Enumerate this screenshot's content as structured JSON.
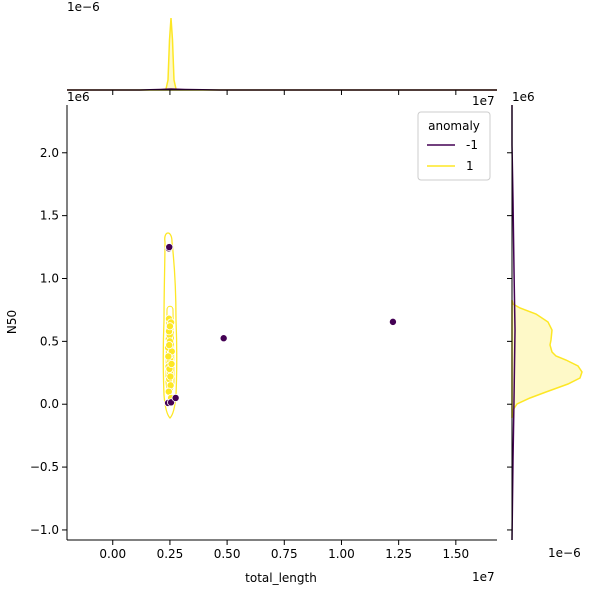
{
  "chart_data": {
    "type": "scatter",
    "kind": "jointplot",
    "xlabel": "total_length",
    "ylabel": "N50",
    "x_offset_label": "1e7",
    "y_offset_label": "1e6",
    "xlim": [
      -2.0,
      16.8
    ],
    "ylim": [
      -1.08,
      2.38
    ],
    "x_ticks": [
      0.0,
      0.25,
      0.5,
      0.75,
      1.0,
      1.25,
      1.5
    ],
    "x_tick_labels": [
      "0.00",
      "0.25",
      "0.50",
      "0.75",
      "1.00",
      "1.25",
      "1.50"
    ],
    "y_ticks": [
      -1.0,
      -0.5,
      0.0,
      0.5,
      1.0,
      1.5,
      2.0
    ],
    "y_tick_labels": [
      "−1.0",
      "−0.5",
      "0.0",
      "0.5",
      "1.0",
      "1.5",
      "2.0"
    ],
    "top_marginal_offset_label": "1e−6",
    "top_marginal_right_label": "1e7",
    "right_marginal_top_label": "1e6",
    "right_marginal_bottom_label": "1e−6",
    "grid": false,
    "legend": {
      "title": "anomaly",
      "position": "top-right",
      "entries": [
        {
          "label": "-1",
          "color": "#440154"
        },
        {
          "label": "1",
          "color": "#fde725"
        }
      ]
    },
    "series": [
      {
        "name": "-1",
        "color": "#440154",
        "points": [
          [
            2.42,
            0.01
          ],
          [
            2.55,
            0.015
          ],
          [
            2.45,
            1.24
          ],
          [
            2.47,
            1.25
          ],
          [
            4.85,
            0.525
          ],
          [
            12.25,
            0.655
          ],
          [
            2.75,
            0.05
          ]
        ]
      },
      {
        "name": "1",
        "color": "#fde725",
        "points": [
          [
            2.45,
            0.52
          ],
          [
            2.5,
            0.45
          ],
          [
            2.48,
            0.38
          ],
          [
            2.52,
            0.6
          ],
          [
            2.46,
            0.68
          ],
          [
            2.55,
            0.65
          ],
          [
            2.44,
            0.3
          ],
          [
            2.5,
            0.25
          ],
          [
            2.47,
            0.2
          ],
          [
            2.53,
            0.15
          ],
          [
            2.42,
            0.45
          ],
          [
            2.58,
            0.42
          ],
          [
            2.49,
            0.55
          ],
          [
            2.51,
            0.35
          ],
          [
            2.45,
            0.1
          ],
          [
            2.55,
            0.05
          ],
          [
            2.46,
            0.58
          ],
          [
            2.5,
            0.5
          ],
          [
            2.48,
            0.28
          ],
          [
            2.52,
            0.22
          ],
          [
            2.43,
            0.38
          ],
          [
            2.57,
            0.32
          ],
          [
            2.5,
            0.62
          ],
          [
            2.47,
            0.47
          ]
        ]
      }
    ],
    "top_marginal": {
      "peak_x": 2.5,
      "colors": [
        "#440154",
        "#fde725"
      ]
    },
    "right_marginal": {
      "peak_y": 0.25,
      "colors": [
        "#440154",
        "#fde725"
      ]
    }
  }
}
